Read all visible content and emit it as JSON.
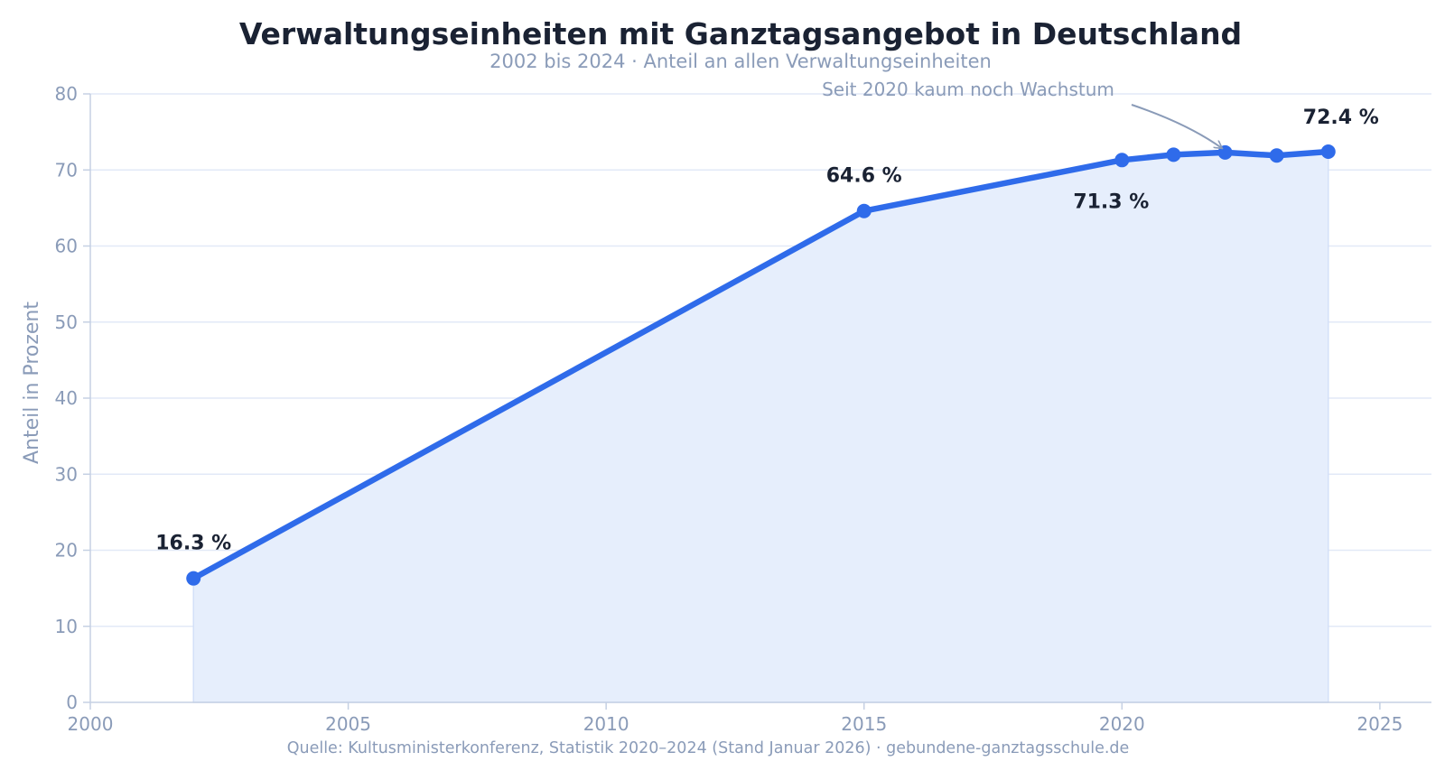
{
  "chart_data": {
    "type": "area",
    "title": "Verwaltungseinheiten mit Ganztagsangebot in Deutschland",
    "subtitle": "2002 bis 2024 · Anteil an allen Verwaltungseinheiten",
    "xlabel": "",
    "ylabel": "Anteil in Prozent",
    "xlim": [
      2000,
      2026
    ],
    "ylim": [
      0,
      80
    ],
    "x_ticks": [
      2000,
      2005,
      2010,
      2015,
      2020,
      2025
    ],
    "y_ticks": [
      0,
      10,
      20,
      30,
      40,
      50,
      60,
      70,
      80
    ],
    "grid": "horizontal",
    "series": [
      {
        "x": [
          2002,
          2015,
          2020,
          2021,
          2022,
          2023,
          2024
        ],
        "y": [
          16.3,
          64.6,
          71.3,
          72.0,
          72.3,
          71.9,
          72.4
        ]
      }
    ],
    "data_labels": [
      {
        "x": 2002,
        "y": 16.3,
        "text": "16.3 %",
        "position": "above"
      },
      {
        "x": 2015,
        "y": 64.6,
        "text": "64.6 %",
        "position": "above"
      },
      {
        "x": 2020,
        "y": 71.3,
        "text": "71.3 %",
        "position": "below"
      },
      {
        "x": 2024,
        "y": 72.4,
        "text": "72.4 %",
        "position": "above"
      }
    ],
    "annotation": {
      "text": "Seit 2020 kaum noch Wachstum",
      "target_x": 2022,
      "target_y": 72.3
    },
    "source": "Quelle: Kultusministerkonferenz, Statistik 2020–2024 (Stand Januar 2026) · gebundene-ganztagsschule.de",
    "colors": {
      "line": "#2f6bea",
      "area": "#e6eefc",
      "grid": "#e2e9f7",
      "axis": "#c5d0e3",
      "text": "#1a2233",
      "muted": "#8a9bb8"
    }
  }
}
